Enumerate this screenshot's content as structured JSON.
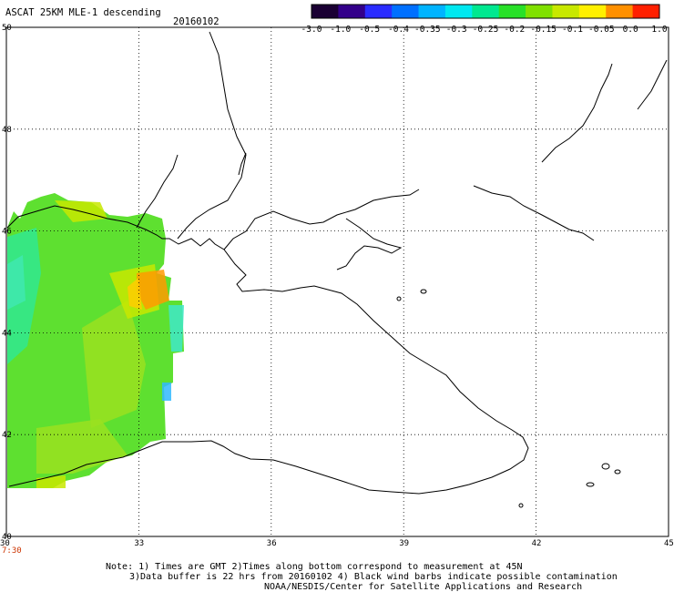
{
  "header": {
    "title": "ASCAT 25KM MLE-1 descending",
    "date": "20160102"
  },
  "colorbar": {
    "labels": [
      "-3.0",
      "-1.0",
      "-0.5",
      "-0.4",
      "-0.35",
      "-0.3",
      "-0.25",
      "-0.2",
      "-0.15",
      "-0.1",
      "-0.05",
      "0.0",
      "1.0"
    ],
    "colors": [
      "#1a0033",
      "#33008a",
      "#2a2cff",
      "#0070ff",
      "#00b4ff",
      "#00e8f0",
      "#00e890",
      "#28e028",
      "#80e000",
      "#c8e800",
      "#fff000",
      "#ff9000",
      "#ff2000"
    ]
  },
  "map": {
    "lon_labels": [
      "30",
      "33",
      "36",
      "39",
      "42",
      "45"
    ],
    "lat_labels": [
      "50",
      "48",
      "46",
      "44",
      "42",
      "40"
    ],
    "time_label": "7:30"
  },
  "notes": {
    "line1": "Note: 1) Times are GMT 2)Times along bottom correspond to measurement at 45N",
    "line2": "3)Data buffer is 22 hrs from 20160102 4) Black wind barbs indicate possible contamination",
    "line3": "NOAA/NESDIS/Center for Satellite Applications and Research"
  }
}
